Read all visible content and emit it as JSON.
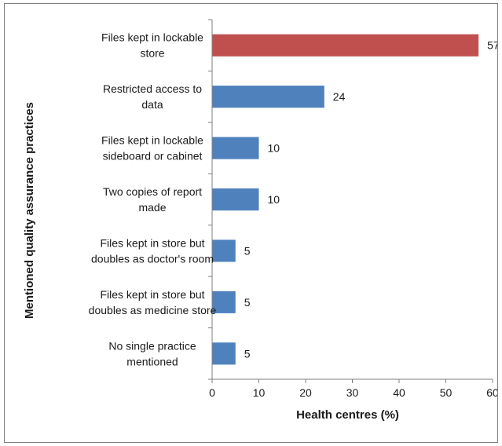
{
  "chart_data": {
    "type": "bar",
    "orientation": "horizontal",
    "title": "",
    "xlabel": "Health centres (%)",
    "ylabel": "Mentioned quality assurance practices",
    "xlim": [
      0,
      60
    ],
    "xticks": [
      0,
      10,
      20,
      30,
      40,
      50,
      60
    ],
    "grid": false,
    "legend": "none",
    "categories": [
      [
        "Files kept in lockable",
        "store"
      ],
      [
        "Restricted access to",
        "data"
      ],
      [
        "Files kept in lockable",
        "sideboard or cabinet"
      ],
      [
        "Two copies of report",
        "made"
      ],
      [
        "Files kept in store but",
        "doubles as doctor's room"
      ],
      [
        "Files kept in store but",
        "doubles as medicine store"
      ],
      [
        "No single practice",
        "mentioned"
      ]
    ],
    "values": [
      57,
      24,
      10,
      10,
      5,
      5,
      5
    ],
    "colors": [
      "#c0504d",
      "#4f81bd",
      "#4f81bd",
      "#4f81bd",
      "#4f81bd",
      "#4f81bd",
      "#4f81bd"
    ]
  }
}
